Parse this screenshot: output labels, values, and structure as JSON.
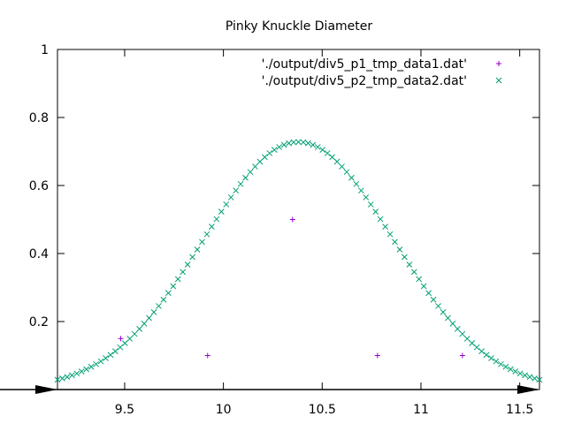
{
  "chart_data": {
    "type": "scatter",
    "title": "Pinky Knuckle Diameter",
    "xlabel": "",
    "ylabel": "",
    "xlim": [
      9.16,
      11.6
    ],
    "ylim": [
      0,
      1
    ],
    "x_ticks": [
      "9.5",
      "10",
      "10.5",
      "11",
      "11.5"
    ],
    "x_tick_values": [
      9.5,
      10,
      10.5,
      11,
      11.5
    ],
    "y_ticks": [
      "0.2",
      "0.4",
      "0.6",
      "0.8",
      "1"
    ],
    "y_tick_values": [
      0.2,
      0.4,
      0.6,
      0.8,
      1
    ],
    "grid": false,
    "legend_position": "top-right",
    "series": [
      {
        "name": "'./output/div5_p1_tmp_data1.dat'",
        "marker": "plus",
        "color": "#9400d3",
        "points": [
          {
            "x": 9.48,
            "y": 0.15
          },
          {
            "x": 9.92,
            "y": 0.1
          },
          {
            "x": 10.35,
            "y": 0.5
          },
          {
            "x": 10.78,
            "y": 0.1
          },
          {
            "x": 11.21,
            "y": 0.1
          }
        ]
      },
      {
        "name": "'./output/div5_p2_tmp_data2.dat'",
        "marker": "cross",
        "color": "#009e73",
        "curve": {
          "form": "gaussian",
          "x_start": 9.16,
          "x_end": 11.6,
          "count": 101,
          "peak_y": 0.728,
          "center_x": 10.38,
          "sigma": 0.48
        }
      }
    ]
  }
}
